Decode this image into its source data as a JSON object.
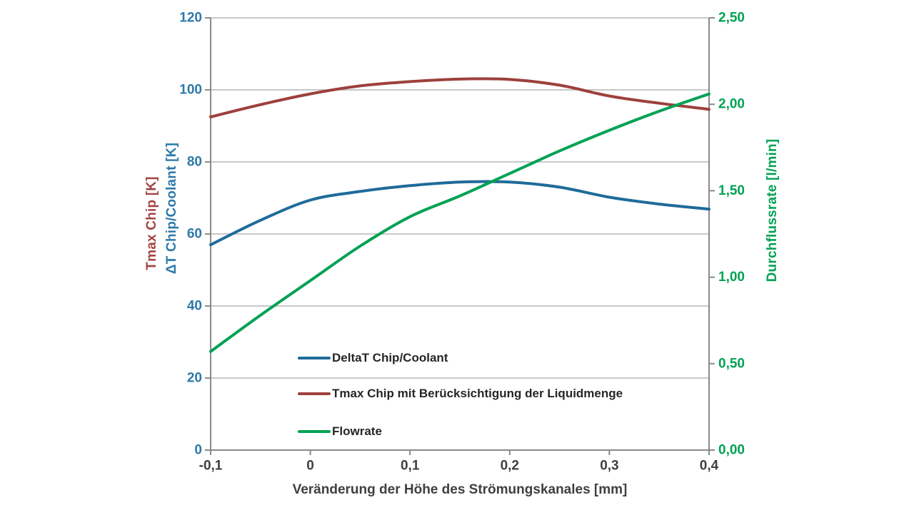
{
  "colors": {
    "background": "#ffffff",
    "blue_series": "#1f6b99",
    "red_series": "#9d403d",
    "green_series": "#00a254",
    "left_tick_text": "#2e79a8",
    "right_tick_text": "#00a254",
    "x_tick_text": "#3f3f3f",
    "left_title_red": "#a24543",
    "left_title_blue": "#2e79a8",
    "right_title_green": "#00a254",
    "x_title_text": "#3f3f3f",
    "grid_line": "#a8a8a8",
    "axis_line": "#8a8a8a",
    "legend_text": "#262626"
  },
  "axes": {
    "left": {
      "title_red": "Tmax Chip [K]",
      "title_blue": "ΔT Chip/Coolant [K]",
      "tick_labels": [
        "0",
        "20",
        "40",
        "60",
        "80",
        "100",
        "120"
      ],
      "tick_values": [
        0,
        20,
        40,
        60,
        80,
        100,
        120
      ],
      "range": [
        0,
        120
      ]
    },
    "right": {
      "title": "Durchflussrate [l/min]",
      "tick_labels": [
        "0,00",
        "0,50",
        "1,00",
        "1,50",
        "2,00",
        "2,50"
      ],
      "tick_values": [
        0,
        0.5,
        1.0,
        1.5,
        2.0,
        2.5
      ],
      "range": [
        0,
        2.5
      ]
    },
    "x": {
      "title": "Veränderung der Höhe des Strömungskanales [mm]",
      "tick_labels": [
        "-0,1",
        "0",
        "0,1",
        "0,2",
        "0,3",
        "0,4"
      ],
      "tick_values": [
        -0.1,
        0,
        0.1,
        0.2,
        0.3,
        0.4
      ],
      "range": [
        -0.1,
        0.4
      ]
    }
  },
  "chart_data": {
    "type": "line",
    "title": "",
    "xlabel": "Veränderung der Höhe des Strömungskanales [mm]",
    "ylabel_left": "Tmax Chip [K] / ΔT Chip/Coolant [K]",
    "ylabel_right": "Durchflussrate [l/min]",
    "ylim_left": [
      0,
      120
    ],
    "ylim_right": [
      0,
      2.5
    ],
    "xlim": [
      -0.1,
      0.4
    ],
    "grid": true,
    "legend_position": "inside-bottom-left",
    "x": [
      -0.1,
      -0.05,
      0,
      0.05,
      0.1,
      0.15,
      0.2,
      0.25,
      0.3,
      0.35,
      0.4
    ],
    "series": [
      {
        "name": "DeltaT Chip/Coolant",
        "axis": "left",
        "color": "#1f6b99",
        "values": [
          57.0,
          63.8,
          69.4,
          71.8,
          73.4,
          74.4,
          74.4,
          73.0,
          70.2,
          68.3,
          66.9
        ]
      },
      {
        "name": "Tmax Chip mit Berücksichtigung der Liquidmenge",
        "axis": "left",
        "color": "#9d403d",
        "values": [
          92.5,
          95.9,
          98.9,
          101.1,
          102.3,
          103.0,
          102.9,
          101.3,
          98.3,
          96.3,
          94.6
        ]
      },
      {
        "name": "Flowrate",
        "axis": "right",
        "color": "#00a254",
        "values": [
          0.57,
          0.78,
          0.98,
          1.18,
          1.35,
          1.47,
          1.6,
          1.73,
          1.85,
          1.96,
          2.06
        ]
      }
    ]
  }
}
